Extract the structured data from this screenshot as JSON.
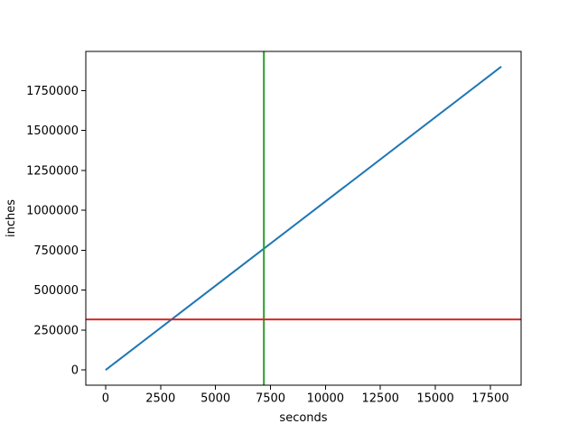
{
  "chart_data": {
    "type": "line",
    "title": "",
    "xlabel": "seconds",
    "ylabel": "inches",
    "xlim": [
      -900,
      18900
    ],
    "ylim": [
      -95040,
      1995840
    ],
    "xticks": [
      0,
      2500,
      5000,
      7500,
      10000,
      12500,
      15000,
      17500
    ],
    "yticks": [
      0,
      250000,
      500000,
      750000,
      1000000,
      1250000,
      1500000,
      1750000
    ],
    "grid": false,
    "legend": "none",
    "background": "#ffffff",
    "spine_color": "#000000",
    "series": [
      {
        "name": "distance-line",
        "kind": "line",
        "color": "#1f77b4",
        "x": [
          0,
          18000
        ],
        "y": [
          0,
          1900800
        ]
      },
      {
        "name": "vline-marker",
        "kind": "vline",
        "color": "#2ca02c",
        "x": 7200
      },
      {
        "name": "hline-marker",
        "kind": "hline",
        "color": "#d62728",
        "y": 316800
      }
    ]
  }
}
